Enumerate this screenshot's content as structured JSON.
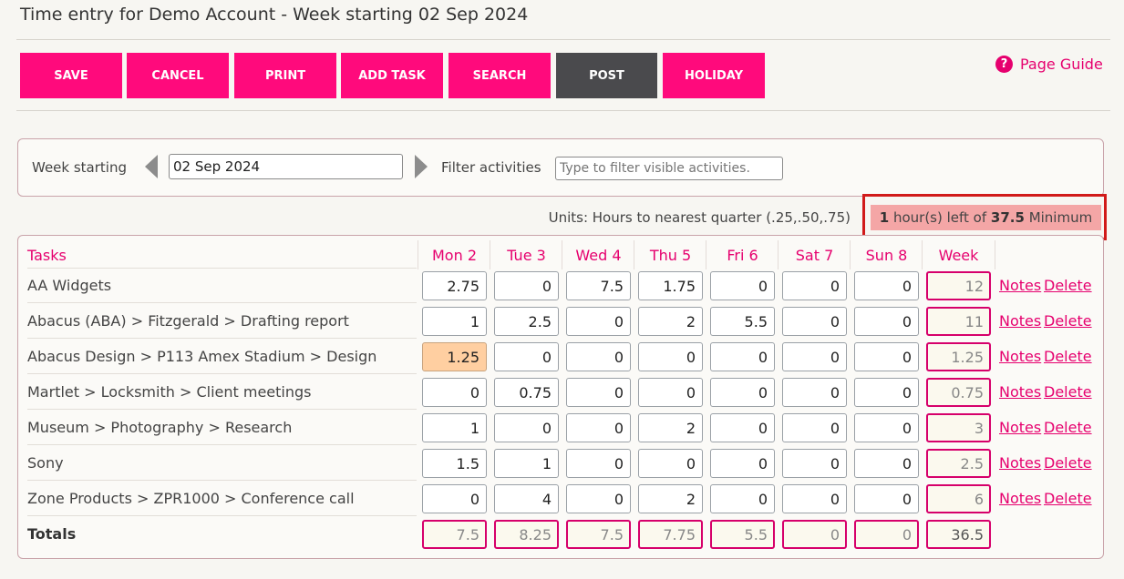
{
  "page": {
    "title": "Time entry for Demo Account - Week starting 02 Sep 2024"
  },
  "toolbar": {
    "buttons": [
      "SAVE",
      "CANCEL",
      "PRINT",
      "ADD TASK",
      "SEARCH",
      "POST",
      "HOLIDAY"
    ],
    "page_guide": "Page Guide",
    "help_glyph": "?"
  },
  "week_bar": {
    "week_label": "Week starting",
    "week_value": "02 Sep 2024",
    "filter_label": "Filter activities",
    "filter_placeholder": "Type to filter visible activities."
  },
  "units": {
    "label": "Units: Hours to nearest quarter (.25,.50,.75)",
    "remaining_count": "1",
    "remaining_text": " hour(s) left of ",
    "remaining_min": "37.5",
    "remaining_suffix": " Minimum"
  },
  "grid": {
    "tasks_header": "Tasks",
    "day_headers": [
      "Mon 2",
      "Tue 3",
      "Wed 4",
      "Thu 5",
      "Fri 6",
      "Sat 7",
      "Sun 8"
    ],
    "week_header": "Week",
    "notes_label": "Notes",
    "delete_label": "Delete",
    "rows": [
      {
        "task": "AA Widgets",
        "hours": [
          "2.75",
          "0",
          "7.5",
          "1.75",
          "0",
          "0",
          "0"
        ],
        "week": "12"
      },
      {
        "task": "Abacus (ABA) > Fitzgerald > Drafting report",
        "hours": [
          "1",
          "2.5",
          "0",
          "2",
          "5.5",
          "0",
          "0"
        ],
        "week": "11"
      },
      {
        "task": "Abacus Design > P113 Amex Stadium > Design",
        "hours": [
          "1.25",
          "0",
          "0",
          "0",
          "0",
          "0",
          "0"
        ],
        "week": "1.25"
      },
      {
        "task": "Martlet > Locksmith > Client meetings",
        "hours": [
          "0",
          "0.75",
          "0",
          "0",
          "0",
          "0",
          "0"
        ],
        "week": "0.75"
      },
      {
        "task": "Museum > Photography > Research",
        "hours": [
          "1",
          "0",
          "0",
          "2",
          "0",
          "0",
          "0"
        ],
        "week": "3"
      },
      {
        "task": "Sony",
        "hours": [
          "1.5",
          "1",
          "0",
          "0",
          "0",
          "0",
          "0"
        ],
        "week": "2.5"
      },
      {
        "task": "Zone Products > ZPR1000 > Conference call",
        "hours": [
          "0",
          "4",
          "0",
          "2",
          "0",
          "0",
          "0"
        ],
        "week": "6"
      }
    ],
    "totals_label": "Totals",
    "totals": [
      "7.5",
      "8.25",
      "7.5",
      "7.75",
      "5.5",
      "0",
      "0"
    ],
    "totals_week": "36.5"
  },
  "colors": {
    "accent": "#ff0a7c",
    "post_button": "#4a4a4d",
    "highlight_cell": "#ffcfa1",
    "remaining_bg": "#f4a6a6",
    "callout_outline": "#d11a1a"
  }
}
